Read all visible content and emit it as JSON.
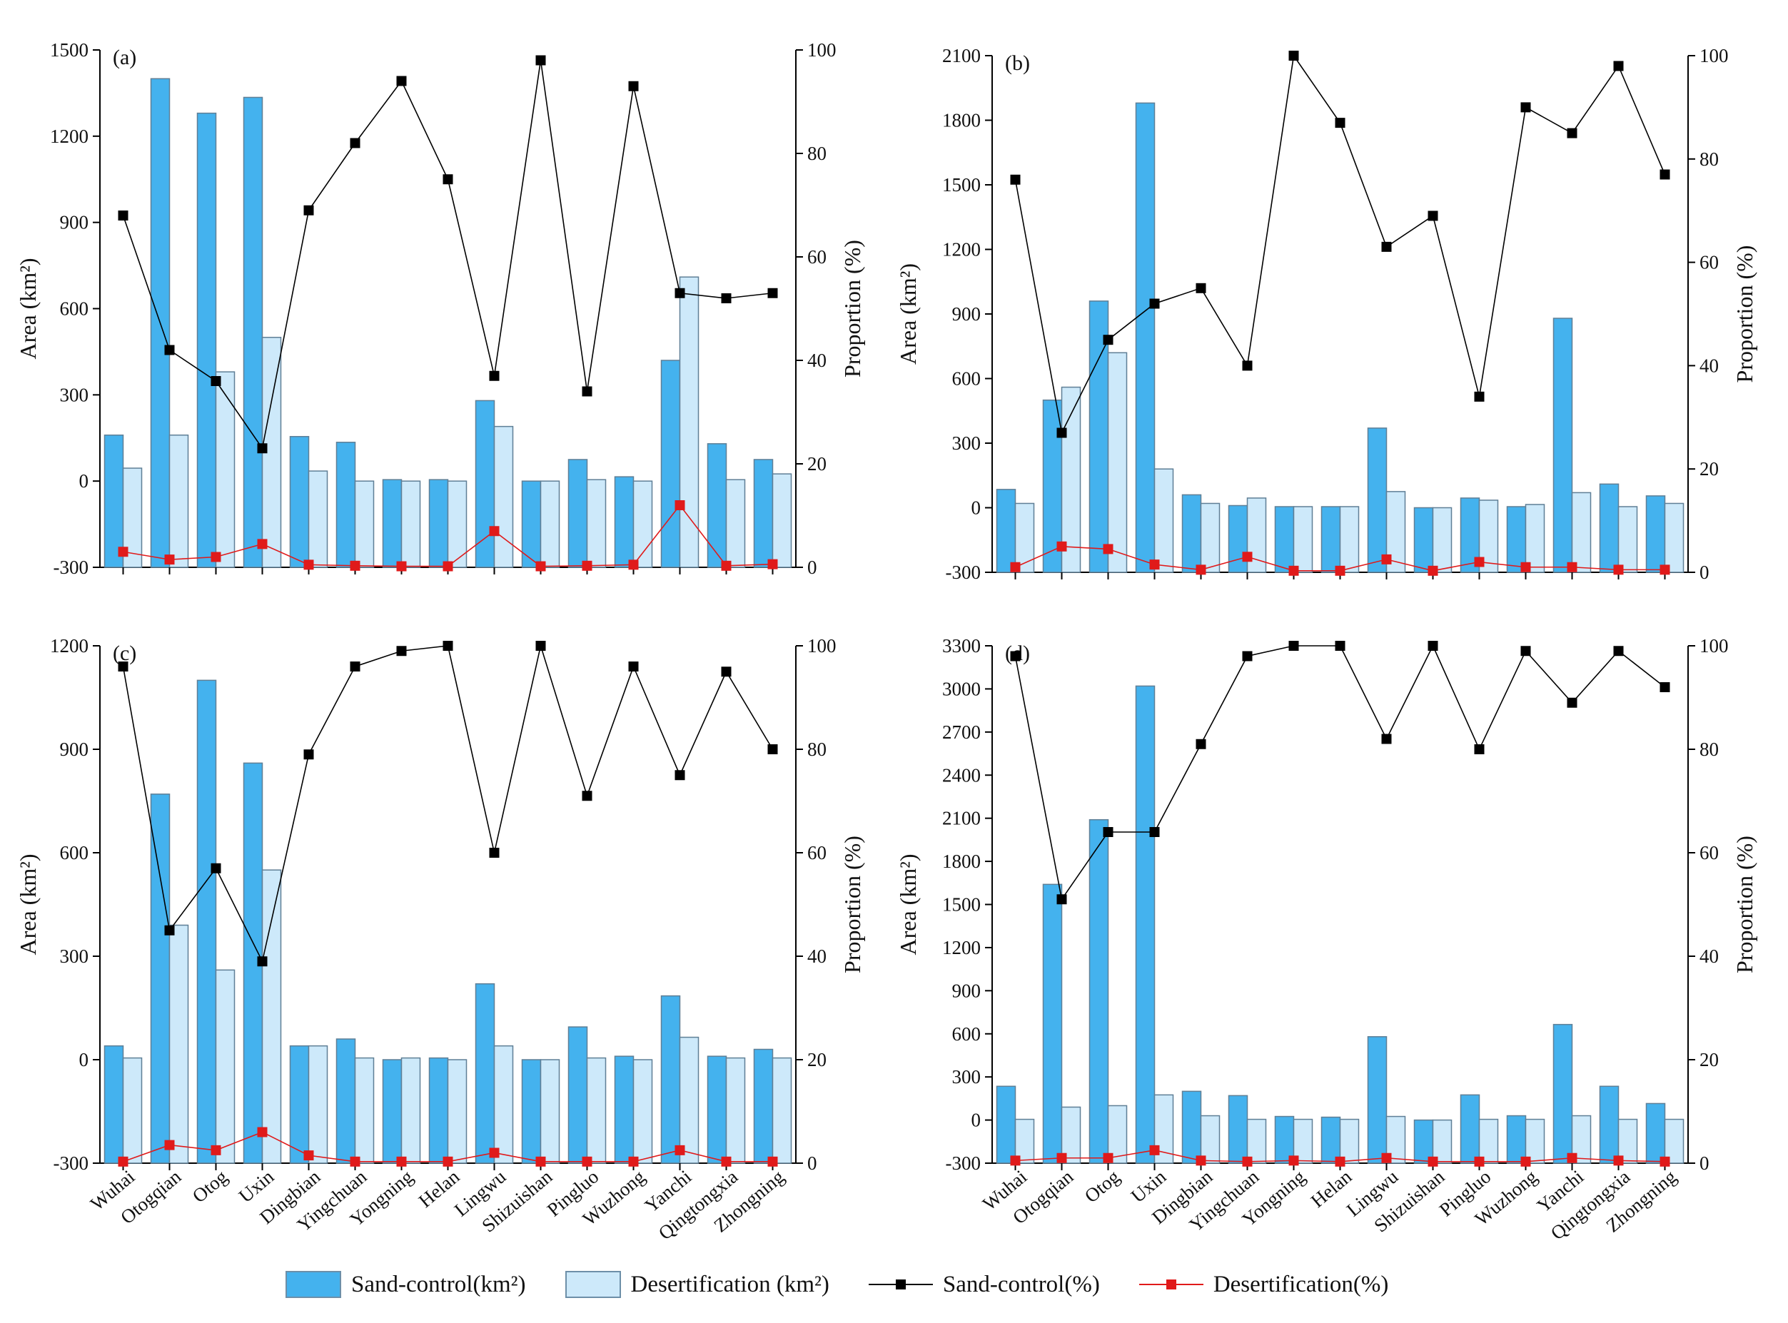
{
  "legend": {
    "sand_area": "Sand-control(km²)",
    "desert_area": "Desertification (km²)",
    "sand_pct": "Sand-control(%)",
    "desert_pct": "Desertification(%)"
  },
  "colors": {
    "sand_bar": "#44b2ee",
    "desert_bar": "#cde9fa",
    "bar_edge": "#5f7f96",
    "sand_line": "#000000",
    "desert_line": "#e01a1a"
  },
  "chart_data": [
    {
      "type": "bar",
      "panel_label": "(a)",
      "ylabel": "Area (km²)",
      "y2label": "Proportion (%)",
      "ylim": [
        -300,
        1500
      ],
      "yticks": [
        "1500",
        "1200",
        "900",
        "600",
        "300",
        "0",
        "-300"
      ],
      "y2lim": [
        0,
        100
      ],
      "y2ticks": [
        "100",
        "80",
        "60",
        "40",
        "20",
        "0"
      ],
      "categories": [
        "Wuhai",
        "Otogqian",
        "Otog",
        "Uxin",
        "Dingbian",
        "Yingchuan",
        "Yongning",
        "Helan",
        "Lingwu",
        "Shizuishan",
        "Pingluo",
        "Wuzhong",
        "Yanchi",
        "Qingtongxia",
        "Zhongning"
      ],
      "series": [
        {
          "name": "Sand-control(km²)",
          "axis": "left",
          "kind": "bar",
          "values": [
            160,
            1400,
            1280,
            1335,
            155,
            135,
            5,
            5,
            280,
            0,
            75,
            15,
            420,
            130,
            75
          ]
        },
        {
          "name": "Desertification (km²)",
          "axis": "left",
          "kind": "bar",
          "values": [
            45,
            160,
            380,
            500,
            35,
            0,
            0,
            0,
            190,
            0,
            5,
            0,
            710,
            5,
            25
          ]
        },
        {
          "name": "Sand-control(%)",
          "axis": "right",
          "kind": "line",
          "values": [
            68,
            42,
            36,
            23,
            69,
            82,
            94,
            75,
            37,
            98,
            34,
            93,
            53,
            52,
            53
          ]
        },
        {
          "name": "Desertification(%)",
          "axis": "right",
          "kind": "line",
          "values": [
            3,
            1.5,
            2,
            4.5,
            0.5,
            0.3,
            0.2,
            0.2,
            7,
            0.2,
            0.3,
            0.5,
            12,
            0.3,
            0.6
          ]
        }
      ]
    },
    {
      "type": "bar",
      "panel_label": "(b)",
      "ylabel": "Area (km²)",
      "y2label": "Proportion (%)",
      "ylim": [
        -300,
        2100
      ],
      "yticks": [
        "2100",
        "1800",
        "1500",
        "1200",
        "900",
        "600",
        "300",
        "0",
        "-300"
      ],
      "y2lim": [
        0,
        100
      ],
      "y2ticks": [
        "100",
        "80",
        "60",
        "40",
        "20",
        "0"
      ],
      "categories": [
        "Wuhai",
        "Otogqian",
        "Otog",
        "Uxin",
        "Dingbian",
        "Yingchuan",
        "Yongning",
        "Helan",
        "Lingwu",
        "Shizuishan",
        "Pingluo",
        "Wuzhong",
        "Yanchi",
        "Qingtongxia",
        "Zhongning"
      ],
      "series": [
        {
          "name": "Sand-control(km²)",
          "axis": "left",
          "kind": "bar",
          "values": [
            85,
            500,
            960,
            1880,
            60,
            10,
            5,
            5,
            370,
            0,
            45,
            5,
            880,
            110,
            55
          ]
        },
        {
          "name": "Desertification (km²)",
          "axis": "left",
          "kind": "bar",
          "values": [
            20,
            560,
            720,
            180,
            20,
            45,
            5,
            5,
            75,
            0,
            35,
            15,
            70,
            5,
            20
          ]
        },
        {
          "name": "Sand-control(%)",
          "axis": "right",
          "kind": "line",
          "values": [
            76,
            27,
            45,
            52,
            55,
            40,
            100,
            87,
            63,
            69,
            34,
            90,
            85,
            98,
            77
          ]
        },
        {
          "name": "Desertification(%)",
          "axis": "right",
          "kind": "line",
          "values": [
            1,
            5,
            4.5,
            1.5,
            0.5,
            3,
            0.3,
            0.3,
            2.5,
            0.3,
            2,
            1,
            1,
            0.5,
            0.5
          ]
        }
      ]
    },
    {
      "type": "bar",
      "panel_label": "(c)",
      "ylabel": "Area (km²)",
      "y2label": "Proportion (%)",
      "ylim": [
        -300,
        1200
      ],
      "yticks": [
        "1200",
        "900",
        "600",
        "300",
        "0",
        "-300"
      ],
      "y2lim": [
        0,
        100
      ],
      "y2ticks": [
        "100",
        "80",
        "60",
        "40",
        "20",
        "0"
      ],
      "categories": [
        "Wuhai",
        "Otogqian",
        "Otog",
        "Uxin",
        "Dingbian",
        "Yingchuan",
        "Yongning",
        "Helan",
        "Lingwu",
        "Shizuishan",
        "Pingluo",
        "Wuzhong",
        "Yanchi",
        "Qingtongxia",
        "Zhongning"
      ],
      "series": [
        {
          "name": "Sand-control(km²)",
          "axis": "left",
          "kind": "bar",
          "values": [
            40,
            770,
            1100,
            860,
            40,
            60,
            0,
            5,
            220,
            0,
            95,
            10,
            185,
            10,
            30
          ]
        },
        {
          "name": "Desertification (km²)",
          "axis": "left",
          "kind": "bar",
          "values": [
            5,
            390,
            260,
            550,
            40,
            5,
            5,
            0,
            40,
            0,
            5,
            0,
            65,
            5,
            5
          ]
        },
        {
          "name": "Sand-control(%)",
          "axis": "right",
          "kind": "line",
          "values": [
            96,
            45,
            57,
            39,
            79,
            96,
            99,
            100,
            60,
            100,
            71,
            96,
            75,
            95,
            80
          ]
        },
        {
          "name": "Desertification(%)",
          "axis": "right",
          "kind": "line",
          "values": [
            0.3,
            3.5,
            2.5,
            6,
            1.5,
            0.3,
            0.3,
            0.3,
            2,
            0.3,
            0.3,
            0.3,
            2.5,
            0.3,
            0.3
          ]
        }
      ]
    },
    {
      "type": "bar",
      "panel_label": "(d)",
      "ylabel": "Area (km²)",
      "y2label": "Proportion (%)",
      "ylim": [
        -300,
        3300
      ],
      "yticks": [
        "3300",
        "3000",
        "2700",
        "2400",
        "2100",
        "1800",
        "1500",
        "1200",
        "900",
        "600",
        "300",
        "0",
        "-300"
      ],
      "y2lim": [
        0,
        100
      ],
      "y2ticks": [
        "100",
        "80",
        "60",
        "40",
        "20",
        "0"
      ],
      "categories": [
        "Wuhai",
        "Otogqian",
        "Otog",
        "Uxin",
        "Dingbian",
        "Yingchuan",
        "Yongning",
        "Helan",
        "Lingwu",
        "Shizuishan",
        "Pingluo",
        "Wuzhong",
        "Yanchi",
        "Qingtongxia",
        "Zhongning"
      ],
      "series": [
        {
          "name": "Sand-control(km²)",
          "axis": "left",
          "kind": "bar",
          "values": [
            235,
            1640,
            2090,
            3020,
            200,
            170,
            25,
            20,
            580,
            0,
            175,
            30,
            665,
            235,
            115
          ]
        },
        {
          "name": "Desertification (km²)",
          "axis": "left",
          "kind": "bar",
          "values": [
            5,
            90,
            100,
            175,
            30,
            5,
            5,
            5,
            25,
            0,
            5,
            5,
            30,
            5,
            5
          ]
        },
        {
          "name": "Sand-control(%)",
          "axis": "right",
          "kind": "line",
          "values": [
            98,
            51,
            64,
            64,
            81,
            98,
            100,
            100,
            82,
            100,
            80,
            99,
            89,
            99,
            92
          ]
        },
        {
          "name": "Desertification(%)",
          "axis": "right",
          "kind": "line",
          "values": [
            0.5,
            1,
            1,
            2.5,
            0.5,
            0.3,
            0.5,
            0.3,
            1,
            0.3,
            0.3,
            0.3,
            1,
            0.5,
            0.3
          ]
        }
      ]
    }
  ]
}
